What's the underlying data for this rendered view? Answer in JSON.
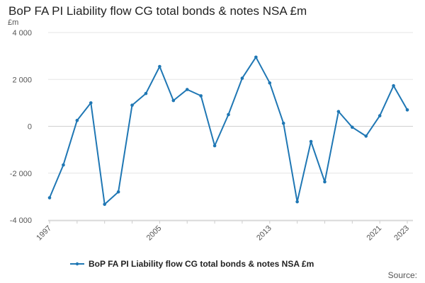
{
  "colors": {
    "series": "#1f77b4",
    "grid": "#e6e6e6",
    "axis": "#cccccc",
    "text": "#555555"
  },
  "chart_data": {
    "type": "line",
    "title": "BoP FA PI Liability flow CG total bonds & notes NSA £m",
    "ylabel": "£m",
    "xlabel": "",
    "source_label": "Source:",
    "ylim": [
      -4000,
      4000
    ],
    "xlim": [
      1997,
      2023
    ],
    "y_ticks": [
      -4000,
      -2000,
      0,
      2000,
      4000
    ],
    "y_tick_labels": [
      "-4 000",
      "-2 000",
      "0",
      "2 000",
      "4 000"
    ],
    "x_tick_labels": [
      "1997",
      "2005",
      "2013",
      "2021",
      "2023"
    ],
    "grid": true,
    "legend_position": "bottom",
    "series": [
      {
        "name": "BoP FA PI Liability flow CG total bonds & notes NSA £m",
        "x": [
          1997,
          1998,
          1999,
          2000,
          2001,
          2002,
          2003,
          2004,
          2005,
          2006,
          2007,
          2008,
          2009,
          2010,
          2011,
          2012,
          2013,
          2014,
          2015,
          2016,
          2017,
          2018,
          2019,
          2020,
          2021,
          2022,
          2023
        ],
        "values": [
          -3050,
          -1650,
          250,
          1000,
          -3330,
          -2800,
          900,
          1400,
          2550,
          1100,
          1570,
          1300,
          -830,
          500,
          2050,
          2950,
          1850,
          130,
          -3220,
          -650,
          -2370,
          630,
          -40,
          -420,
          450,
          1730,
          700
        ]
      }
    ]
  }
}
